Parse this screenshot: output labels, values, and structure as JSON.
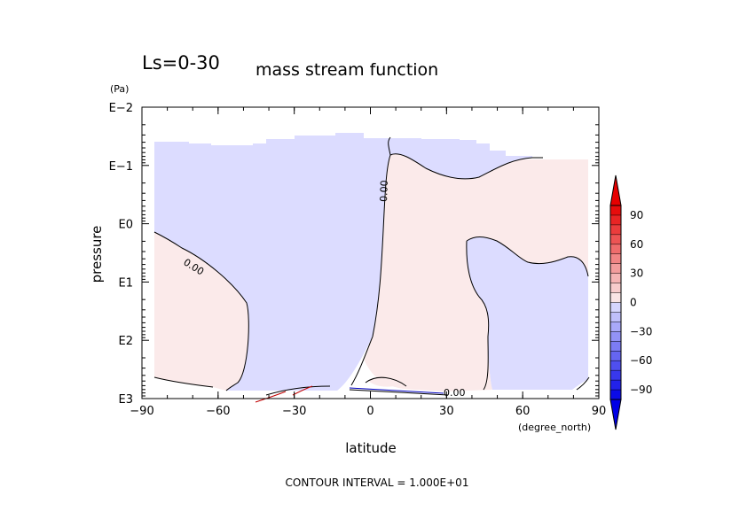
{
  "chart_data": {
    "type": "contour",
    "title_left": "Ls=0-30",
    "title_right": "mass stream function",
    "ylabel": "pressure",
    "yunits": "(Pa)",
    "xlabel": "latitude",
    "xunits": "(degree_north)",
    "footer": "CONTOUR INTERVAL = 1.000E+01",
    "xlim": [
      -90,
      90
    ],
    "ylim_log10_pa": [
      -2,
      3
    ],
    "y_log_scale": true,
    "x_ticks": [
      "−90",
      "−60",
      "−30",
      "0",
      "30",
      "60",
      "90"
    ],
    "x_tick_values": [
      -90,
      -60,
      -30,
      0,
      30,
      60,
      90
    ],
    "y_ticks": [
      "E−2",
      "E−1",
      "E0",
      "E1",
      "E2",
      "E3"
    ],
    "y_tick_values": [
      -2,
      -1,
      0,
      1,
      2,
      3
    ],
    "contour_labels": [
      "0.00",
      "0.00",
      "0.00"
    ],
    "colorbar": {
      "tick_labels": [
        "90",
        "60",
        "30",
        "0",
        "−30",
        "−60",
        "−90"
      ],
      "tick_values": [
        90,
        60,
        30,
        0,
        -30,
        -60,
        -90
      ],
      "colors": {
        "positive_light": "#fbeaea",
        "negative_light": "#dcdcff",
        "red_max": "#e60000",
        "blue_max": "#0000e6"
      }
    }
  }
}
